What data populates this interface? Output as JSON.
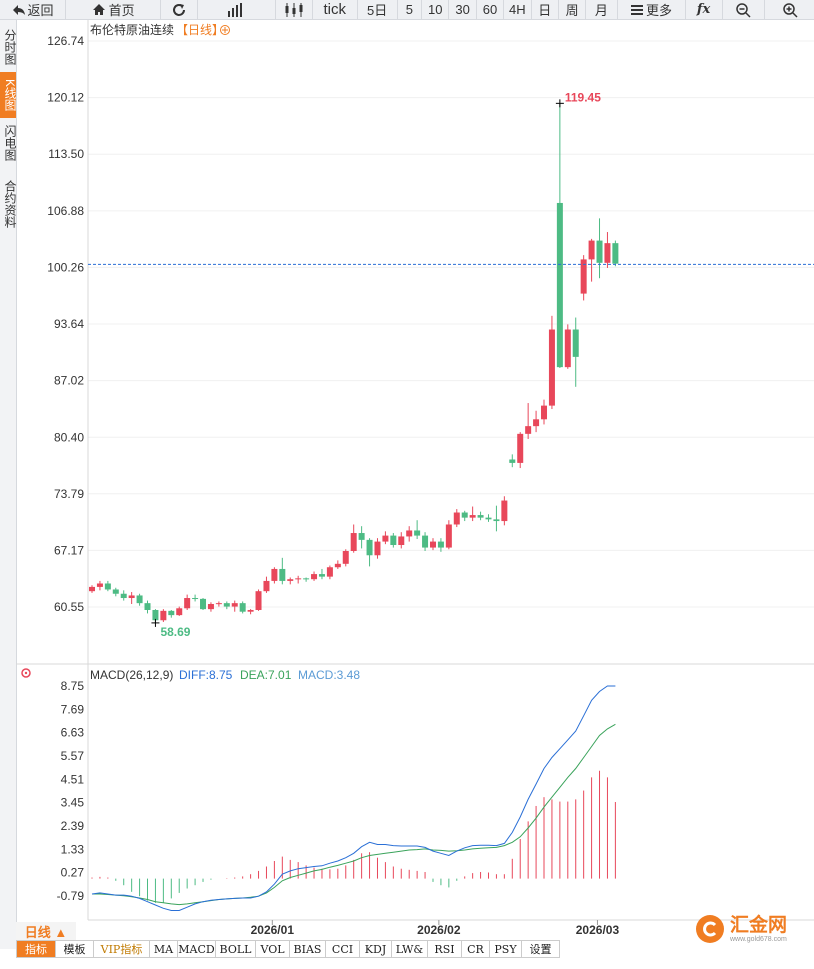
{
  "toolbar": {
    "back_label": "返回",
    "home_label": "首页",
    "tick_label": "tick",
    "periods": [
      "5日",
      "5",
      "10",
      "30",
      "60",
      "4H",
      "日",
      "周",
      "月"
    ],
    "more_label": "更多",
    "fx_label": "fx"
  },
  "left_tabs": [
    "分时图",
    "K线图",
    "闪电图",
    "合约资料"
  ],
  "active_tab": "K线图",
  "colors": {
    "up": "#e8475a",
    "down": "#4dbb84",
    "accent": "#f07d22",
    "diff_line": "#2a6fd6",
    "dea_line": "#3aa35b",
    "dashed_level": "#2a6fd6"
  },
  "chart_data": [
    {
      "type": "candlestick",
      "title": "布伦特原油连续",
      "period_tag": "【日线】",
      "ylim": [
        54.0,
        126.74
      ],
      "y_ticks": [
        "126.74",
        "120.12",
        "113.50",
        "106.88",
        "100.26",
        "93.64",
        "87.02",
        "80.40",
        "73.79",
        "67.17",
        "60.55"
      ],
      "x_tick_labels": [
        {
          "label": "2026/01",
          "index": 24
        },
        {
          "label": "2026/02",
          "index": 45
        },
        {
          "label": "2026/03",
          "index": 65
        }
      ],
      "current_level": 100.62,
      "annotations": {
        "high": "119.45",
        "low": "58.69"
      },
      "ohlc": [
        [
          62.4,
          63.1,
          62.2,
          62.9
        ],
        [
          62.9,
          63.6,
          62.5,
          63.3
        ],
        [
          63.3,
          63.6,
          62.4,
          62.6
        ],
        [
          62.6,
          62.8,
          61.8,
          62.1
        ],
        [
          62.1,
          62.5,
          61.3,
          61.6
        ],
        [
          61.6,
          62.3,
          60.9,
          61.9
        ],
        [
          61.9,
          62.1,
          60.7,
          61.0
        ],
        [
          61.0,
          61.3,
          59.8,
          60.2
        ],
        [
          60.2,
          60.3,
          58.69,
          59.0
        ],
        [
          59.0,
          60.3,
          58.8,
          60.1
        ],
        [
          60.1,
          60.2,
          59.3,
          59.6
        ],
        [
          59.6,
          60.6,
          59.5,
          60.4
        ],
        [
          60.4,
          62.0,
          60.2,
          61.6
        ],
        [
          61.6,
          62.0,
          61.2,
          61.5
        ],
        [
          61.5,
          61.6,
          60.2,
          60.3
        ],
        [
          60.3,
          61.1,
          60.0,
          60.9
        ],
        [
          60.9,
          61.2,
          60.6,
          61.0
        ],
        [
          61.0,
          61.2,
          60.3,
          60.6
        ],
        [
          60.6,
          61.3,
          60.0,
          61.0
        ],
        [
          61.0,
          61.2,
          59.8,
          60.0
        ],
        [
          60.0,
          60.3,
          59.7,
          60.2
        ],
        [
          60.2,
          62.6,
          60.1,
          62.4
        ],
        [
          62.4,
          64.1,
          62.2,
          63.6
        ],
        [
          63.6,
          65.2,
          63.3,
          65.0
        ],
        [
          65.0,
          66.3,
          63.2,
          63.6
        ],
        [
          63.6,
          64.0,
          63.2,
          63.8
        ],
        [
          63.8,
          64.2,
          63.3,
          63.9
        ],
        [
          63.9,
          64.0,
          63.5,
          63.8
        ],
        [
          63.8,
          64.7,
          63.6,
          64.4
        ],
        [
          64.4,
          65.0,
          63.8,
          64.1
        ],
        [
          64.1,
          65.4,
          63.8,
          65.2
        ],
        [
          65.2,
          66.0,
          65.0,
          65.6
        ],
        [
          65.6,
          67.3,
          65.3,
          67.1
        ],
        [
          67.1,
          70.2,
          66.9,
          69.2
        ],
        [
          69.2,
          70.0,
          67.4,
          68.4
        ],
        [
          68.4,
          68.6,
          65.3,
          66.6
        ],
        [
          66.6,
          68.6,
          66.2,
          68.2
        ],
        [
          68.2,
          69.4,
          67.9,
          68.9
        ],
        [
          68.9,
          69.2,
          67.5,
          67.8
        ],
        [
          67.8,
          69.3,
          67.4,
          68.8
        ],
        [
          68.8,
          70.0,
          68.2,
          69.5
        ],
        [
          69.5,
          70.7,
          68.5,
          68.9
        ],
        [
          68.9,
          69.3,
          67.1,
          67.5
        ],
        [
          67.5,
          68.6,
          67.2,
          68.2
        ],
        [
          68.2,
          68.6,
          67.0,
          67.5
        ],
        [
          67.5,
          70.7,
          67.3,
          70.2
        ],
        [
          70.2,
          72.0,
          69.9,
          71.6
        ],
        [
          71.6,
          71.8,
          70.6,
          71.0
        ],
        [
          71.0,
          72.3,
          70.6,
          71.3
        ],
        [
          71.3,
          71.7,
          70.7,
          71.0
        ],
        [
          71.0,
          71.4,
          70.5,
          70.8
        ],
        [
          70.8,
          72.4,
          69.4,
          70.6
        ],
        [
          70.6,
          73.5,
          70.1,
          73.0
        ],
        [
          77.8,
          78.4,
          76.9,
          77.4
        ],
        [
          77.4,
          81.0,
          76.8,
          80.8
        ],
        [
          80.8,
          84.4,
          80.2,
          81.7
        ],
        [
          81.7,
          83.5,
          81.0,
          82.5
        ],
        [
          82.5,
          84.8,
          81.9,
          84.1
        ],
        [
          84.1,
          94.6,
          83.7,
          93.0
        ],
        [
          107.8,
          119.45,
          88.5,
          88.6
        ],
        [
          88.6,
          93.6,
          88.4,
          93.0
        ],
        [
          93.0,
          94.4,
          86.3,
          89.8
        ],
        [
          97.2,
          101.7,
          96.4,
          101.2
        ],
        [
          101.2,
          103.6,
          98.6,
          103.4
        ],
        [
          103.4,
          106.0,
          99.0,
          100.8
        ],
        [
          100.8,
          104.4,
          100.2,
          103.1
        ],
        [
          103.1,
          103.4,
          100.4,
          100.7
        ]
      ]
    },
    {
      "type": "line+bar",
      "title": "MACD(26,12,9)",
      "diff_label": "DIFF:8.75",
      "dea_label": "DEA:7.01",
      "macd_label": "MACD:3.48",
      "ylim": [
        -1.6,
        9.3
      ],
      "y_ticks": [
        "8.75",
        "7.69",
        "6.63",
        "5.57",
        "4.51",
        "3.45",
        "2.39",
        "1.33",
        "0.27",
        "-0.79"
      ],
      "diff": [
        -0.7,
        -0.65,
        -0.7,
        -0.75,
        -0.75,
        -0.8,
        -0.9,
        -1.05,
        -1.2,
        -1.35,
        -1.45,
        -1.45,
        -1.3,
        -1.15,
        -1.05,
        -0.98,
        -0.95,
        -0.92,
        -0.9,
        -0.88,
        -0.88,
        -0.8,
        -0.6,
        -0.25,
        0.2,
        0.35,
        0.45,
        0.5,
        0.55,
        0.58,
        0.7,
        0.8,
        0.95,
        1.15,
        1.45,
        1.65,
        1.55,
        1.55,
        1.5,
        1.48,
        1.48,
        1.48,
        1.42,
        1.25,
        1.15,
        1.05,
        1.25,
        1.4,
        1.5,
        1.52,
        1.52,
        1.5,
        1.6,
        2.1,
        2.8,
        3.6,
        4.3,
        5.0,
        5.5,
        5.9,
        6.3,
        6.7,
        7.4,
        8.1,
        8.5,
        8.75,
        8.75
      ],
      "dea": [
        -0.7,
        -0.7,
        -0.72,
        -0.75,
        -0.78,
        -0.82,
        -0.88,
        -0.95,
        -1.05,
        -1.1,
        -1.15,
        -1.18,
        -1.15,
        -1.1,
        -1.05,
        -1.0,
        -0.95,
        -0.92,
        -0.9,
        -0.88,
        -0.85,
        -0.8,
        -0.65,
        -0.4,
        -0.1,
        0.05,
        0.15,
        0.25,
        0.35,
        0.42,
        0.52,
        0.6,
        0.7,
        0.8,
        0.95,
        1.05,
        1.1,
        1.15,
        1.2,
        1.25,
        1.3,
        1.32,
        1.35,
        1.3,
        1.28,
        1.25,
        1.27,
        1.3,
        1.35,
        1.38,
        1.4,
        1.42,
        1.5,
        1.65,
        1.9,
        2.3,
        2.75,
        3.25,
        3.7,
        4.15,
        4.6,
        5.0,
        5.5,
        6.0,
        6.5,
        6.8,
        7.01
      ],
      "macd": [
        0.05,
        0.08,
        0.05,
        -0.1,
        -0.3,
        -0.6,
        -0.8,
        -1.0,
        -1.1,
        -1.1,
        -0.9,
        -0.65,
        -0.45,
        -0.3,
        -0.15,
        -0.05,
        0.0,
        0.02,
        0.05,
        0.1,
        0.2,
        0.35,
        0.55,
        0.8,
        1.0,
        0.85,
        0.75,
        0.6,
        0.5,
        0.45,
        0.42,
        0.45,
        0.6,
        0.85,
        1.15,
        1.2,
        0.95,
        0.75,
        0.55,
        0.45,
        0.4,
        0.35,
        0.3,
        -0.15,
        -0.3,
        -0.4,
        -0.1,
        0.1,
        0.25,
        0.3,
        0.28,
        0.2,
        0.2,
        0.9,
        1.8,
        2.6,
        3.3,
        3.7,
        3.6,
        3.5,
        3.5,
        3.6,
        4.0,
        4.6,
        4.9,
        4.6,
        3.48
      ]
    }
  ],
  "bottom": {
    "period_label": "日线 ▲",
    "tabs": [
      "指标",
      "模板",
      "VIP指标",
      "MA",
      "MACD",
      "BOLL",
      "VOL",
      "BIAS",
      "CCI",
      "KDJ",
      "LW&",
      "RSI",
      "CR",
      "PSY",
      "设置"
    ]
  },
  "logo": {
    "name": "汇金网",
    "url_text": "www.gold678.com"
  }
}
